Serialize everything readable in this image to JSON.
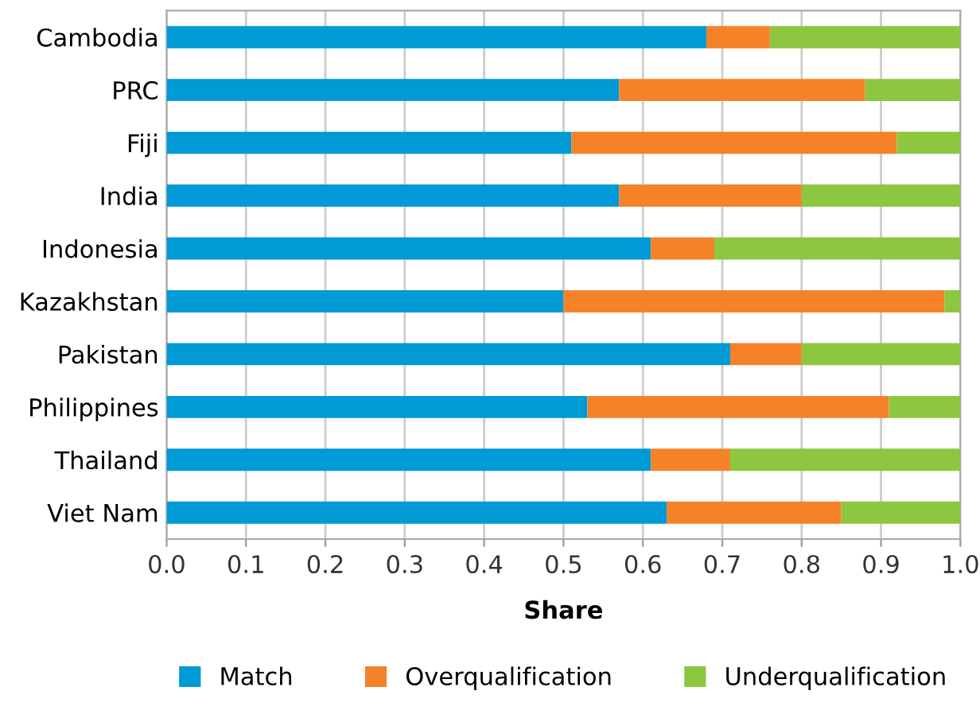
{
  "chart_data": {
    "type": "bar",
    "orientation": "horizontal",
    "stacked": true,
    "xlabel": "Share",
    "categories": [
      "Cambodia",
      "PRC",
      "Fiji",
      "India",
      "Indonesia",
      "Kazakhstan",
      "Pakistan",
      "Philippines",
      "Thailand",
      "Viet Nam"
    ],
    "series": [
      {
        "name": "Match",
        "color": "#009ad6",
        "values": [
          0.68,
          0.57,
          0.51,
          0.57,
          0.61,
          0.5,
          0.71,
          0.53,
          0.61,
          0.63
        ]
      },
      {
        "name": "Overqualification",
        "color": "#f58229",
        "values": [
          0.08,
          0.31,
          0.41,
          0.23,
          0.08,
          0.48,
          0.09,
          0.38,
          0.1,
          0.22
        ]
      },
      {
        "name": "Underqualification",
        "color": "#8dc63f",
        "values": [
          0.24,
          0.12,
          0.08,
          0.2,
          0.31,
          0.02,
          0.2,
          0.09,
          0.29,
          0.15
        ]
      }
    ],
    "xlim": [
      0,
      1
    ],
    "xticks": [
      {
        "value": 0,
        "label": "0.0"
      },
      0.1,
      0.2,
      0.3,
      0.4,
      0.5,
      0.6,
      0.7,
      0.8,
      0.9,
      {
        "value": 1,
        "label": "1.0"
      }
    ],
    "grid": "x",
    "legend": "bottom"
  }
}
